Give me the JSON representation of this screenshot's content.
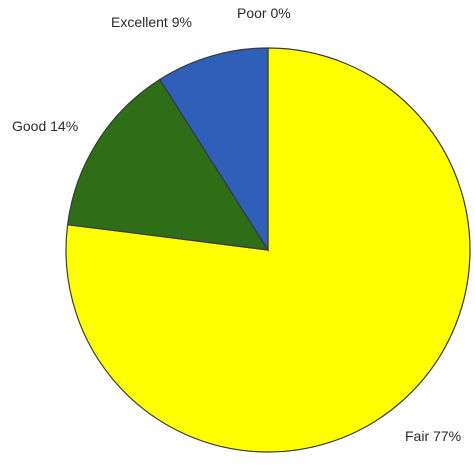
{
  "chart_data": {
    "type": "pie",
    "slices": [
      {
        "label": "Poor 0%",
        "value": 0,
        "color": "#2f5fb8"
      },
      {
        "label": "Fair 77%",
        "value": 77,
        "color": "#ffff00"
      },
      {
        "label": "Good 14%",
        "value": 14,
        "color": "#2e6e16"
      },
      {
        "label": "Excellent 9%",
        "value": 9,
        "color": "#2f5fb8"
      }
    ],
    "start_direction": "top",
    "order": "clockwise"
  }
}
